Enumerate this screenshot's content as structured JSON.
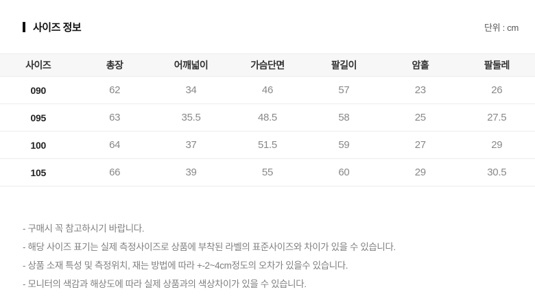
{
  "section": {
    "title": "사이즈 정보",
    "unit_label": "단위 : cm"
  },
  "table": {
    "columns": [
      "사이즈",
      "총장",
      "어깨넓이",
      "가슴단면",
      "팔길이",
      "암홀",
      "팔둘레"
    ],
    "rows": [
      {
        "size": "090",
        "values": [
          "62",
          "34",
          "46",
          "57",
          "23",
          "26"
        ]
      },
      {
        "size": "095",
        "values": [
          "63",
          "35.5",
          "48.5",
          "58",
          "25",
          "27.5"
        ]
      },
      {
        "size": "100",
        "values": [
          "64",
          "37",
          "51.5",
          "59",
          "27",
          "29"
        ]
      },
      {
        "size": "105",
        "values": [
          "66",
          "39",
          "55",
          "60",
          "29",
          "30.5"
        ]
      }
    ]
  },
  "notes": [
    "- 구매시 꼭 참고하시기 바랍니다.",
    "- 해당 사이즈 표기는 실제 측정사이즈로 상품에 부착된 라벨의 표준사이즈와 차이가 있을 수 있습니다.",
    "- 상품 소재 특성 및 측정위치, 재는 방법에 따라 +-2~4cm정도의 오차가 있을수 있습니다.",
    "- 모니터의 색감과 해상도에 따라 실제 상품과의 색상차이가 있을 수 있습니다."
  ],
  "colors": {
    "header_bg": "#f7f7f8",
    "row_border": "#ececec",
    "title_text": "#111111",
    "size_text": "#222222",
    "value_text": "#888888",
    "note_text": "#808080"
  }
}
